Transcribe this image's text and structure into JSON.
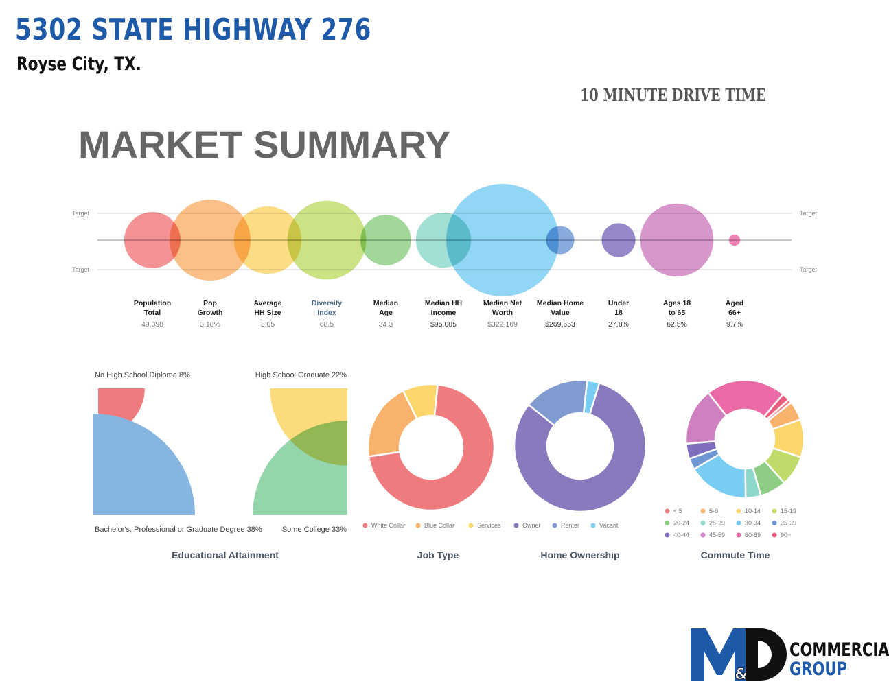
{
  "header": {
    "title": "5302 STATE HIGHWAY 276",
    "subtitle": "Royse City, TX.",
    "drive_time": "10 MINUTE DRIVE TIME",
    "section": "MARKET SUMMARY"
  },
  "logo": {
    "line1": "COMMERCIAL",
    "line2": "GROUP",
    "mark": "M&D"
  },
  "chart_data": [
    {
      "type": "scatter",
      "subtype": "bubble",
      "target_labels": [
        "Target",
        "Target",
        "Target",
        "Target"
      ],
      "categories": [
        {
          "label": [
            "Population",
            "Total"
          ],
          "value": "49,398",
          "size": 1.0,
          "color": "#f07b7e"
        },
        {
          "label": [
            "Pop",
            "Growth"
          ],
          "value": "3.18%",
          "size": 1.44,
          "color": "#f9b26c"
        },
        {
          "label": [
            "Average",
            "HH Size"
          ],
          "value": "3.05",
          "size": 1.2,
          "color": "#fbd66a"
        },
        {
          "label": [
            "Diversity",
            "Index"
          ],
          "value": "68.5",
          "size": 1.4,
          "color": "#bfdc6a"
        },
        {
          "label": [
            "Median",
            "Age"
          ],
          "value": "34.3",
          "size": 0.9,
          "color": "#8dce84"
        },
        {
          "label": [
            "Median HH",
            "Income"
          ],
          "value": "$95,005",
          "size": 0.98,
          "color": "#8ed8cb"
        },
        {
          "label": [
            "Median Net",
            "Worth"
          ],
          "value": "$322,169",
          "size": 2.0,
          "color": "#79cdf2"
        },
        {
          "label": [
            "Median Home",
            "Value"
          ],
          "value": "$269,653",
          "size": 0.5,
          "color": "#6e97d4"
        },
        {
          "label": [
            "Under",
            "18"
          ],
          "value": "27.8%",
          "size": 0.6,
          "color": "#7f6dbd"
        },
        {
          "label": [
            "Ages 18",
            "to 65"
          ],
          "value": "62.5%",
          "size": 1.3,
          "color": "#cf80c0"
        },
        {
          "label": [
            "Aged",
            "66+"
          ],
          "value": "9.7%",
          "size": 0.2,
          "color": "#ea6aa6"
        }
      ]
    },
    {
      "type": "pie",
      "title": "Educational Attainment",
      "slices": [
        {
          "label": "No High School Diploma",
          "pct": "8%",
          "value": 8,
          "color": "#f07b7e"
        },
        {
          "label": "High School Graduate",
          "pct": "22%",
          "value": 22,
          "color": "#fbd66a"
        },
        {
          "label": "Bachelor's, Professional or Graduate Degree",
          "pct": "38%",
          "value": 38,
          "color": "#86b5e0"
        },
        {
          "label": "Some College",
          "pct": "33%",
          "value": 33,
          "color": "#8fd3a6"
        }
      ]
    },
    {
      "type": "pie",
      "title": "Job Type",
      "donut": true,
      "slices": [
        {
          "label": "White Collar",
          "value": 71,
          "color": "#f07b7e"
        },
        {
          "label": "Blue Collar",
          "value": 20,
          "color": "#f9b26c"
        },
        {
          "label": "Services",
          "value": 9,
          "color": "#fbd66a"
        }
      ]
    },
    {
      "type": "pie",
      "title": "Home Ownership",
      "donut": true,
      "slices": [
        {
          "label": "Owner",
          "value": 81,
          "color": "#8979bd"
        },
        {
          "label": "Renter",
          "value": 16,
          "color": "#7f9bd0"
        },
        {
          "label": "Vacant",
          "value": 3,
          "color": "#79cdf2"
        }
      ]
    },
    {
      "type": "pie",
      "title": "Commute Time",
      "donut": true,
      "slices": [
        {
          "label": "< 5",
          "value": 1,
          "color": "#f07b7e"
        },
        {
          "label": "5-9",
          "value": 5,
          "color": "#f9b26c"
        },
        {
          "label": "10-14",
          "value": 10,
          "color": "#fbd66a"
        },
        {
          "label": "15-19",
          "value": 8,
          "color": "#bfdc6a"
        },
        {
          "label": "20-24",
          "value": 7,
          "color": "#8dce84"
        },
        {
          "label": "25-29",
          "value": 4,
          "color": "#8ed8cb"
        },
        {
          "label": "30-34",
          "value": 16,
          "color": "#79cdf2"
        },
        {
          "label": "35-39",
          "value": 3,
          "color": "#6e97d4"
        },
        {
          "label": "40-44",
          "value": 4,
          "color": "#7f6dbd"
        },
        {
          "label": "45-59",
          "value": 15,
          "color": "#cf80c0"
        },
        {
          "label": "60-89",
          "value": 21,
          "color": "#ea6aa6"
        },
        {
          "label": "90+",
          "value": 2,
          "color": "#e85f7e"
        }
      ]
    }
  ]
}
